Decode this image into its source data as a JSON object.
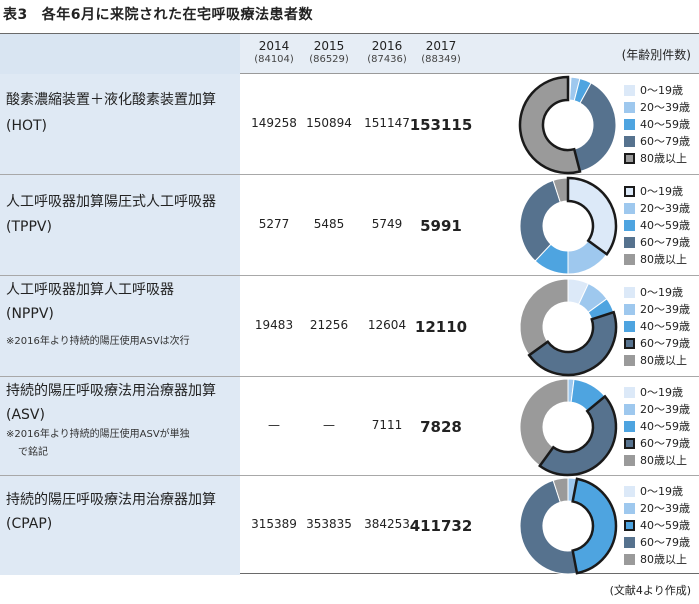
{
  "title": {
    "label": "表3",
    "text": "各年6月に来院された在宅呼吸療法患者数"
  },
  "header": {
    "years": [
      {
        "year": "2014",
        "total": "(84104)"
      },
      {
        "year": "2015",
        "total": "(86529)"
      },
      {
        "year": "2016",
        "total": "(87436)"
      },
      {
        "year": "2017",
        "total": "(88349)"
      }
    ],
    "age_header": "(年齢別件数)"
  },
  "age_groups": [
    "0～19歳",
    "20～39歳",
    "40～59歳",
    "60～79歳",
    "80歳以上"
  ],
  "colors": [
    "#dce9f8",
    "#9ec8ee",
    "#4ea4e0",
    "#56728e",
    "#9a9a9a"
  ],
  "rows": [
    {
      "name": [
        "酸素濃縮装置＋液化酸素装置加算",
        "(HOT)"
      ],
      "note": [],
      "values": [
        "149258",
        "150894",
        "151147",
        "153115"
      ],
      "highlight": 4
    },
    {
      "name": [
        "人工呼吸器加算陽圧式人工呼吸器",
        "(TPPV)"
      ],
      "note": [],
      "values": [
        "5277",
        "5485",
        "5749",
        "5991"
      ],
      "highlight": 0
    },
    {
      "name": [
        "人工呼吸器加算人工呼吸器",
        "(NPPV)"
      ],
      "note": [
        "※2016年より持続的陽圧使用ASVは次行"
      ],
      "values": [
        "19483",
        "21256",
        "12604",
        "12110"
      ],
      "highlight": 3
    },
    {
      "name": [
        "持続的陽圧呼吸療法用治療器加算",
        "(ASV)"
      ],
      "note": [
        "※2016年より持続的陽圧使用ASVが単独",
        "で銘記"
      ],
      "values": [
        "—",
        "—",
        "7111",
        "7828"
      ],
      "highlight": 3
    },
    {
      "name": [
        "持続的陽圧呼吸療法用治療器加算",
        "(CPAP)"
      ],
      "note": [],
      "values": [
        "315389",
        "353835",
        "384253",
        "411732"
      ],
      "highlight": 2
    }
  ],
  "chart_data": [
    {
      "type": "pie",
      "title": "HOT",
      "categories": [
        "0～19歳",
        "20～39歳",
        "40～59歳",
        "60～79歳",
        "80歳以上"
      ],
      "values": [
        1,
        3,
        4,
        38,
        54
      ],
      "highlight": "80歳以上"
    },
    {
      "type": "pie",
      "title": "TPPV",
      "categories": [
        "0～19歳",
        "20～39歳",
        "40～59歳",
        "60～79歳",
        "80歳以上"
      ],
      "values": [
        35,
        15,
        12,
        33,
        5
      ],
      "highlight": "0～19歳"
    },
    {
      "type": "pie",
      "title": "NPPV",
      "categories": [
        "0～19歳",
        "20～39歳",
        "40～59歳",
        "60～79歳",
        "80歳以上"
      ],
      "values": [
        7,
        8,
        5,
        45,
        35
      ],
      "highlight": "60～79歳"
    },
    {
      "type": "pie",
      "title": "ASV",
      "categories": [
        "0～19歳",
        "20～39歳",
        "40～59歳",
        "60～79歳",
        "80歳以上"
      ],
      "values": [
        0,
        2,
        12,
        46,
        40
      ],
      "highlight": "60～79歳"
    },
    {
      "type": "pie",
      "title": "CPAP",
      "categories": [
        "0～19歳",
        "20～39歳",
        "40～59歳",
        "60～79歳",
        "80歳以上"
      ],
      "values": [
        0,
        3,
        44,
        48,
        5
      ],
      "highlight": "40～59歳"
    }
  ],
  "footer": "(文献4より作成)"
}
